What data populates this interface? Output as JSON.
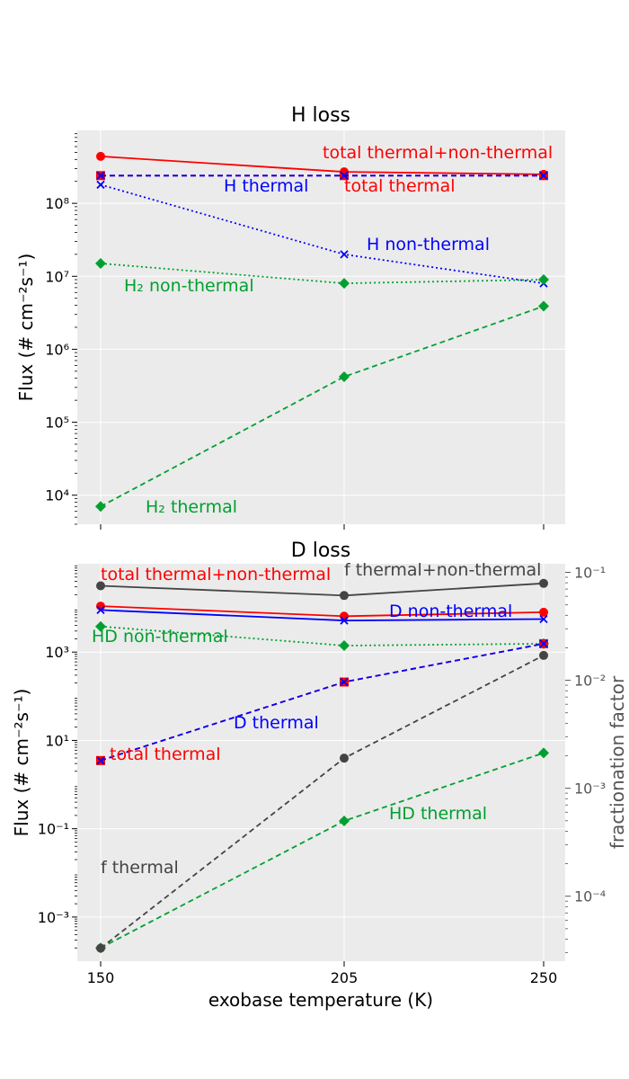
{
  "chart_data": [
    {
      "type": "line",
      "title": "H loss",
      "ylabel": "Flux (# cm⁻²s⁻¹)",
      "yscale": "log",
      "ylim": [
        4000,
        1000000000
      ],
      "ytick_labels": [
        "10⁴",
        "10⁵",
        "10⁶",
        "10⁷",
        "10⁸"
      ],
      "x": [
        150,
        205,
        250
      ],
      "grid": true,
      "series": [
        {
          "name": "total thermal+non-thermal",
          "color": "#ff0000",
          "style": "solid",
          "marker": "circle",
          "values": [
            440000000,
            270000000,
            250000000
          ]
        },
        {
          "name": "total thermal",
          "color": "#ff0000",
          "style": "dashed",
          "marker": "square",
          "values": [
            240000000,
            240000000,
            240000000
          ]
        },
        {
          "name": "H thermal",
          "color": "#0000ff",
          "style": "dashed",
          "marker": "x",
          "values": [
            240000000,
            240000000,
            240000000
          ]
        },
        {
          "name": "H non-thermal",
          "color": "#0000ff",
          "style": "dotted",
          "marker": "x",
          "values": [
            180000000,
            20000000,
            8000000
          ]
        },
        {
          "name": "H₂ non-thermal",
          "color": "#00a030",
          "style": "dotted",
          "marker": "diamond",
          "values": [
            15000000,
            8000000,
            9000000
          ]
        },
        {
          "name": "H₂ thermal",
          "color": "#00a030",
          "style": "dashed",
          "marker": "diamond",
          "values": [
            7000,
            420000,
            3900000
          ]
        }
      ]
    },
    {
      "type": "line",
      "title": "D loss",
      "xlabel": "exobase temperature (K)",
      "ylabel": "Flux (# cm⁻²s⁻¹)",
      "yscale": "log",
      "ylim": [
        0.0001,
        100000
      ],
      "ytick_labels": [
        "10⁻³",
        "10⁻¹",
        "10¹",
        "10³"
      ],
      "y2label": "fractionation factor",
      "y2scale": "log",
      "y2lim": [
        2.5e-05,
        0.12
      ],
      "y2tick_labels": [
        "10⁻⁴",
        "10⁻³",
        "10⁻²",
        "10⁻¹"
      ],
      "x": [
        150,
        205,
        250
      ],
      "x_tick_labels": [
        "150",
        "205",
        "250"
      ],
      "grid": true,
      "series": [
        {
          "name": "total thermal+non-thermal",
          "axis": "left",
          "color": "#ff0000",
          "style": "solid",
          "marker": "circle",
          "values": [
            11000,
            6500,
            8000
          ]
        },
        {
          "name": "D non-thermal",
          "axis": "left",
          "color": "#0000ff",
          "style": "solid",
          "marker": "x",
          "values": [
            9000,
            5200,
            5600
          ]
        },
        {
          "name": "HD non-thermal",
          "axis": "left",
          "color": "#00a030",
          "style": "dotted",
          "marker": "diamond",
          "values": [
            3800,
            1400,
            1550
          ]
        },
        {
          "name": "total thermal",
          "axis": "left",
          "color": "#ff0000",
          "style": "dashed",
          "marker": "square",
          "values": [
            3.5,
            210,
            1550
          ]
        },
        {
          "name": "D thermal",
          "axis": "left",
          "color": "#0000ff",
          "style": "dashed",
          "marker": "x",
          "values": [
            3.5,
            210,
            1550
          ]
        },
        {
          "name": "HD thermal",
          "axis": "left",
          "color": "#00a030",
          "style": "dashed",
          "marker": "diamond",
          "values": 0.0002,
          "values_list": [
            0.0002,
            0.15,
            5.2
          ]
        },
        {
          "name": "f thermal+non-thermal",
          "axis": "right",
          "color": "#444444",
          "style": "solid",
          "marker": "circle",
          "values": [
            0.075,
            0.061,
            0.079
          ]
        },
        {
          "name": "f thermal",
          "axis": "right",
          "color": "#444444",
          "style": "dashed",
          "marker": "circle",
          "values": [
            3.3e-05,
            0.0019,
            0.017
          ]
        }
      ]
    }
  ]
}
